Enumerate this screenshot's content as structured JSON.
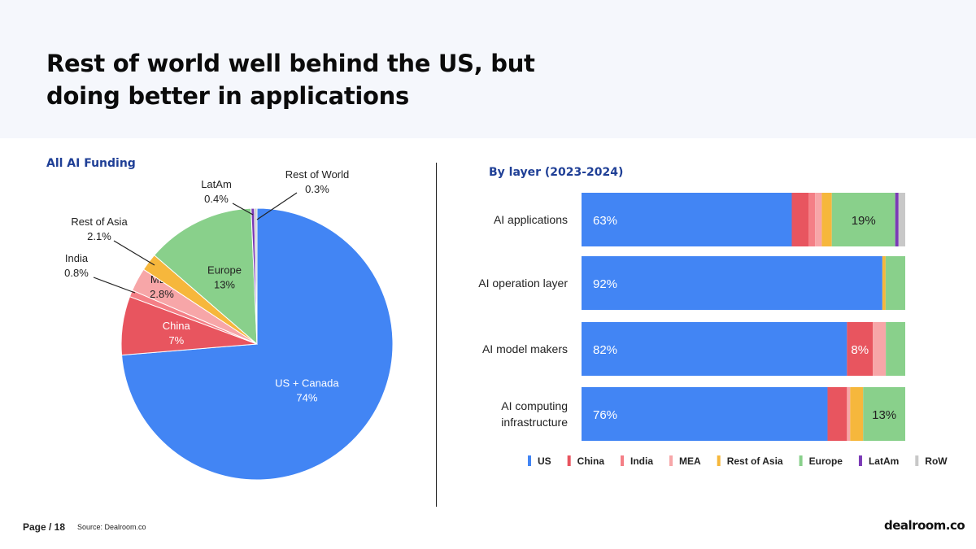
{
  "header": {
    "title": "Rest of world well behind the US, but doing better in applications"
  },
  "colors": {
    "US": "#4285f4",
    "China": "#e8555f",
    "India": "#f47f86",
    "MEA": "#f7a6a8",
    "Rest of Asia": "#f6b73c",
    "Europe": "#89d08b",
    "LatAm": "#7b3ab6",
    "RoW": "#c8c8c8"
  },
  "footer": {
    "page": "Page / 18",
    "source": "Source:  Dealroom.co",
    "logo": "dealroom.co"
  },
  "chart_data": [
    {
      "type": "pie",
      "title": "All AI Funding",
      "slices": [
        {
          "label": "US + Canada",
          "value": 74,
          "display": "74%",
          "color_key": "US"
        },
        {
          "label": "China",
          "value": 7,
          "display": "7%",
          "color_key": "China"
        },
        {
          "label": "India",
          "value": 0.8,
          "display": "0.8%",
          "color_key": "India"
        },
        {
          "label": "MEA",
          "value": 2.8,
          "display": "2.8%",
          "color_key": "MEA"
        },
        {
          "label": "Rest of Asia",
          "value": 2.1,
          "display": "2.1%",
          "color_key": "Rest of Asia"
        },
        {
          "label": "Europe",
          "value": 13,
          "display": "13%",
          "color_key": "Europe"
        },
        {
          "label": "LatAm",
          "value": 0.4,
          "display": "0.4%",
          "color_key": "LatAm"
        },
        {
          "label": "Rest of World",
          "value": 0.3,
          "display": "0.3%",
          "color_key": "RoW"
        }
      ]
    },
    {
      "type": "bar",
      "orientation": "horizontal",
      "stacked": true,
      "title": "By layer (2023-2024)",
      "categories": [
        "AI applications",
        "AI operation layer",
        "AI model makers",
        "AI computing infrastructure"
      ],
      "series": [
        {
          "name": "US",
          "values": [
            63,
            92,
            82,
            76
          ]
        },
        {
          "name": "China",
          "values": [
            5,
            0,
            8,
            6
          ]
        },
        {
          "name": "India",
          "values": [
            2,
            0,
            0,
            0
          ]
        },
        {
          "name": "MEA",
          "values": [
            2,
            0,
            4,
            1
          ]
        },
        {
          "name": "Rest of Asia",
          "values": [
            3,
            1,
            0,
            4
          ]
        },
        {
          "name": "Europe",
          "values": [
            19,
            6,
            6,
            13
          ]
        },
        {
          "name": "LatAm",
          "values": [
            1,
            0,
            0,
            0
          ]
        },
        {
          "name": "RoW",
          "values": [
            2,
            0,
            0,
            0
          ]
        }
      ],
      "data_labels": [
        {
          "category": "AI applications",
          "series": "US",
          "text": "63%"
        },
        {
          "category": "AI applications",
          "series": "Europe",
          "text": "19%"
        },
        {
          "category": "AI operation layer",
          "series": "US",
          "text": "92%"
        },
        {
          "category": "AI model makers",
          "series": "US",
          "text": "82%"
        },
        {
          "category": "AI model makers",
          "series": "China",
          "text": "8%"
        },
        {
          "category": "AI computing infrastructure",
          "series": "US",
          "text": "76%"
        },
        {
          "category": "AI computing infrastructure",
          "series": "Europe",
          "text": "13%"
        }
      ],
      "legend_position": "bottom"
    }
  ]
}
